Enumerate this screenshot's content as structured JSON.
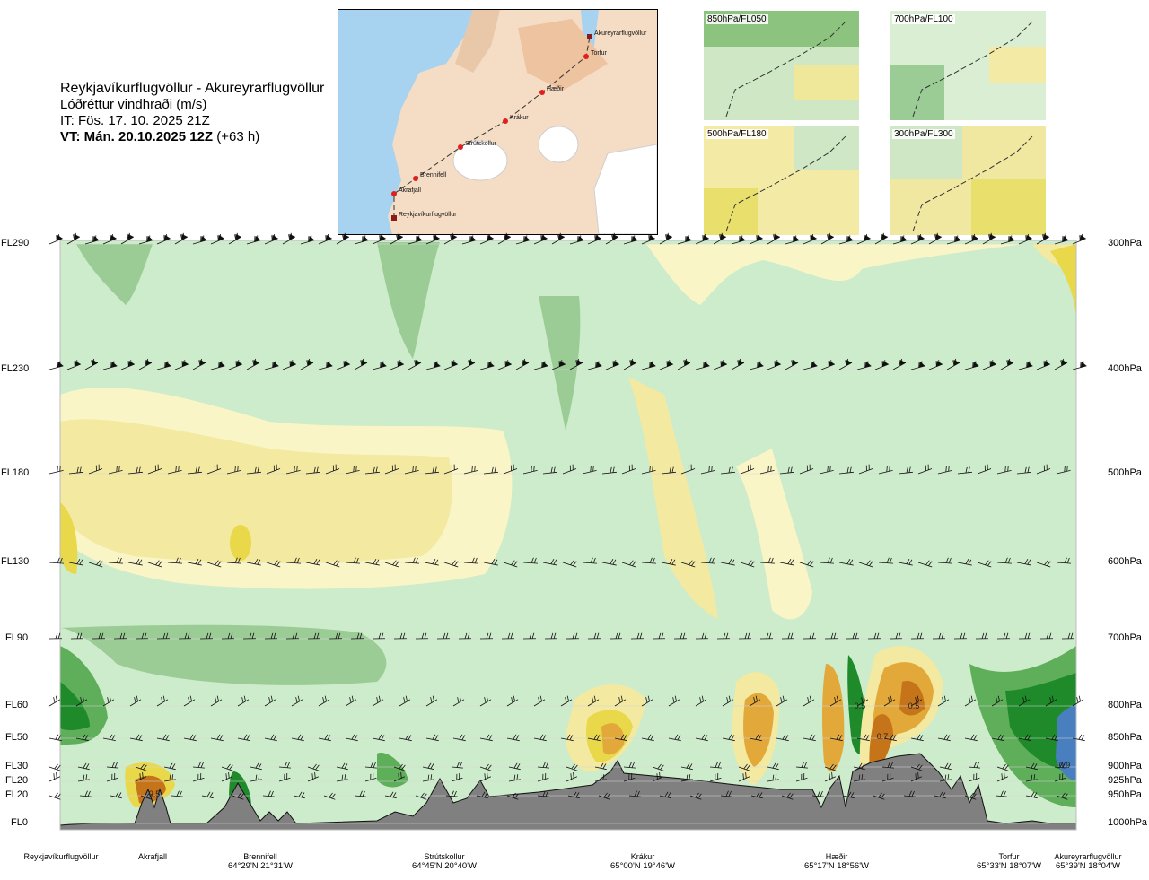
{
  "title": {
    "route": "Reykjavíkurflugvöllur - Akureyrarflugvöllur",
    "quantity": "Lóðréttur vindhraði (m/s)",
    "it": "IT: Fös. 17. 10. 2025 21Z",
    "vt_bold": "VT: Mán. 20.10.2025 12Z",
    "vt_offset": " (+63 h)"
  },
  "map": {
    "places": [
      {
        "name": "Akureyrarflugvöllur"
      },
      {
        "name": "Torfur"
      },
      {
        "name": "Hæðir"
      },
      {
        "name": "Krákur"
      },
      {
        "name": "Strútskollur"
      },
      {
        "name": "Brennifell"
      },
      {
        "name": "Akrafjall"
      },
      {
        "name": "Reykjavíkurflugvöllur"
      }
    ]
  },
  "levels_maps": [
    {
      "label": "850hPa/FL050",
      "color": "#5e9e56"
    },
    {
      "label": "700hPa/FL100",
      "color": "#8fc487"
    },
    {
      "label": "500hPa/FL180",
      "color": "#e8e27a"
    },
    {
      "label": "300hPa/FL300",
      "color": "#e6de6f"
    }
  ],
  "chart_data": {
    "type": "heatmap",
    "left_axis": [
      "FL290",
      "FL230",
      "FL180",
      "FL130",
      "FL90",
      "FL60",
      "FL50",
      "FL30",
      "FL20",
      "FL20",
      "FL0"
    ],
    "right_axis": [
      "300hPa",
      "400hPa",
      "500hPa",
      "600hPa",
      "700hPa",
      "800hPa",
      "850hPa",
      "900hPa",
      "925hPa",
      "950hPa",
      "1000hPa"
    ],
    "pressure_levels_hpa": [
      300,
      400,
      500,
      600,
      700,
      800,
      850,
      900,
      925,
      950,
      1000
    ],
    "stations": [
      {
        "name": "Reykjavíkurflugvöllur",
        "coord": ""
      },
      {
        "name": "Akrafjall",
        "coord": ""
      },
      {
        "name": "Brennifell",
        "coord": "64°29'N 21°31'W"
      },
      {
        "name": "Strútskollur",
        "coord": "64°45'N 20°40'W"
      },
      {
        "name": "Krákur",
        "coord": "65°00'N 19°46'W"
      },
      {
        "name": "Hæðir",
        "coord": "65°17'N 18°56'W"
      },
      {
        "name": "Torfur",
        "coord": "65°33'N 18°07'W"
      },
      {
        "name": "Akureyrarflugvöllur",
        "coord": "65°39'N 18°04'W"
      }
    ],
    "contour_labels": [
      "0.5",
      "0.5",
      "0.5",
      "0.7",
      "0.9"
    ],
    "colors": {
      "strong_down": "#1f8a2a",
      "moderate_down": "#5fae5a",
      "weak_down": "#9ccc96",
      "calm": "#cdeccb",
      "weak_up": "#faf5c6",
      "moderate_up": "#f3e9a0",
      "strong_up": "#e8d84a",
      "very_strong_up": "#e2a93a",
      "extreme_up": "#c6741a",
      "terrain": "#808080",
      "high_positive": "#4a7fbf"
    }
  }
}
